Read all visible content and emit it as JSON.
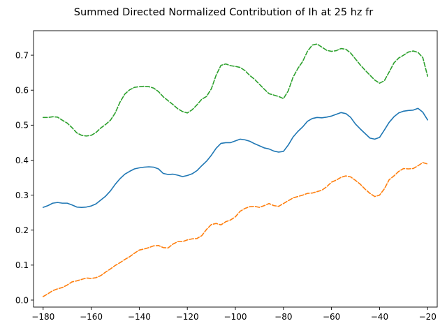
{
  "chart_data": {
    "type": "line",
    "title": "Summed Directed Normalized Contribution of Ih at 25 hz fr",
    "xlabel": "",
    "ylabel": "",
    "xlim": [
      -184,
      -16
    ],
    "ylim": [
      -0.02,
      0.77
    ],
    "grid": false,
    "x_ticks": [
      -180,
      -160,
      -140,
      -120,
      -100,
      -80,
      -60,
      -40,
      -20
    ],
    "y_ticks": [
      0.0,
      0.1,
      0.2,
      0.3,
      0.4,
      0.5,
      0.6,
      0.7
    ],
    "x_tick_labels": [
      "−180",
      "−160",
      "−140",
      "−120",
      "−100",
      "−80",
      "−60",
      "−40",
      "−20"
    ],
    "y_tick_labels": [
      "0.0",
      "0.1",
      "0.2",
      "0.3",
      "0.4",
      "0.5",
      "0.6",
      "0.7"
    ],
    "x": [
      -180,
      -178,
      -176,
      -174,
      -172,
      -170,
      -168,
      -166,
      -164,
      -162,
      -160,
      -158,
      -156,
      -154,
      -152,
      -150,
      -148,
      -146,
      -144,
      -142,
      -140,
      -138,
      -136,
      -134,
      -132,
      -130,
      -128,
      -126,
      -124,
      -122,
      -120,
      -118,
      -116,
      -114,
      -112,
      -110,
      -108,
      -106,
      -104,
      -102,
      -100,
      -98,
      -96,
      -94,
      -92,
      -90,
      -88,
      -86,
      -84,
      -82,
      -80,
      -78,
      -76,
      -74,
      -72,
      -70,
      -68,
      -66,
      -64,
      -62,
      -60,
      -58,
      -56,
      -54,
      -52,
      -50,
      -48,
      -46,
      -44,
      -42,
      -40,
      -38,
      -36,
      -34,
      -32,
      -30,
      -28,
      -26,
      -24,
      -22,
      -20
    ],
    "series": [
      {
        "color": "#1f77b4",
        "style": "solid",
        "values": [
          0.265,
          0.27,
          0.277,
          0.279,
          0.277,
          0.277,
          0.272,
          0.266,
          0.265,
          0.266,
          0.269,
          0.275,
          0.286,
          0.297,
          0.312,
          0.331,
          0.347,
          0.36,
          0.368,
          0.375,
          0.378,
          0.38,
          0.381,
          0.38,
          0.375,
          0.362,
          0.359,
          0.36,
          0.357,
          0.353,
          0.356,
          0.361,
          0.37,
          0.384,
          0.397,
          0.414,
          0.434,
          0.448,
          0.45,
          0.45,
          0.455,
          0.46,
          0.458,
          0.454,
          0.447,
          0.441,
          0.435,
          0.432,
          0.426,
          0.423,
          0.425,
          0.443,
          0.466,
          0.482,
          0.495,
          0.511,
          0.519,
          0.522,
          0.521,
          0.523,
          0.526,
          0.531,
          0.536,
          0.533,
          0.522,
          0.503,
          0.489,
          0.476,
          0.463,
          0.46,
          0.465,
          0.486,
          0.508,
          0.524,
          0.535,
          0.54,
          0.542,
          0.543,
          0.548,
          0.537,
          0.515
        ]
      },
      {
        "color": "#ff7f0e",
        "style": "dashed",
        "values": [
          0.01,
          0.018,
          0.027,
          0.032,
          0.036,
          0.043,
          0.052,
          0.055,
          0.059,
          0.063,
          0.062,
          0.064,
          0.07,
          0.08,
          0.089,
          0.099,
          0.107,
          0.116,
          0.124,
          0.134,
          0.143,
          0.146,
          0.15,
          0.155,
          0.156,
          0.15,
          0.149,
          0.16,
          0.167,
          0.167,
          0.172,
          0.175,
          0.176,
          0.184,
          0.202,
          0.216,
          0.219,
          0.215,
          0.224,
          0.229,
          0.238,
          0.254,
          0.262,
          0.267,
          0.268,
          0.265,
          0.27,
          0.276,
          0.27,
          0.268,
          0.276,
          0.284,
          0.292,
          0.296,
          0.3,
          0.305,
          0.306,
          0.31,
          0.314,
          0.324,
          0.337,
          0.343,
          0.351,
          0.355,
          0.352,
          0.342,
          0.331,
          0.317,
          0.305,
          0.296,
          0.3,
          0.318,
          0.344,
          0.355,
          0.368,
          0.376,
          0.375,
          0.376,
          0.384,
          0.393,
          0.389
        ]
      },
      {
        "color": "#2ca02c",
        "style": "dashed",
        "values": [
          0.522,
          0.522,
          0.524,
          0.523,
          0.514,
          0.506,
          0.493,
          0.478,
          0.471,
          0.469,
          0.471,
          0.479,
          0.492,
          0.502,
          0.514,
          0.535,
          0.566,
          0.589,
          0.601,
          0.608,
          0.61,
          0.611,
          0.61,
          0.606,
          0.596,
          0.581,
          0.57,
          0.559,
          0.547,
          0.539,
          0.535,
          0.544,
          0.558,
          0.574,
          0.582,
          0.604,
          0.643,
          0.671,
          0.675,
          0.67,
          0.668,
          0.665,
          0.656,
          0.642,
          0.631,
          0.617,
          0.603,
          0.59,
          0.586,
          0.582,
          0.576,
          0.598,
          0.637,
          0.662,
          0.682,
          0.711,
          0.729,
          0.732,
          0.723,
          0.714,
          0.711,
          0.713,
          0.719,
          0.717,
          0.706,
          0.689,
          0.672,
          0.657,
          0.643,
          0.629,
          0.62,
          0.627,
          0.652,
          0.678,
          0.692,
          0.7,
          0.709,
          0.712,
          0.708,
          0.693,
          0.64
        ]
      }
    ]
  }
}
